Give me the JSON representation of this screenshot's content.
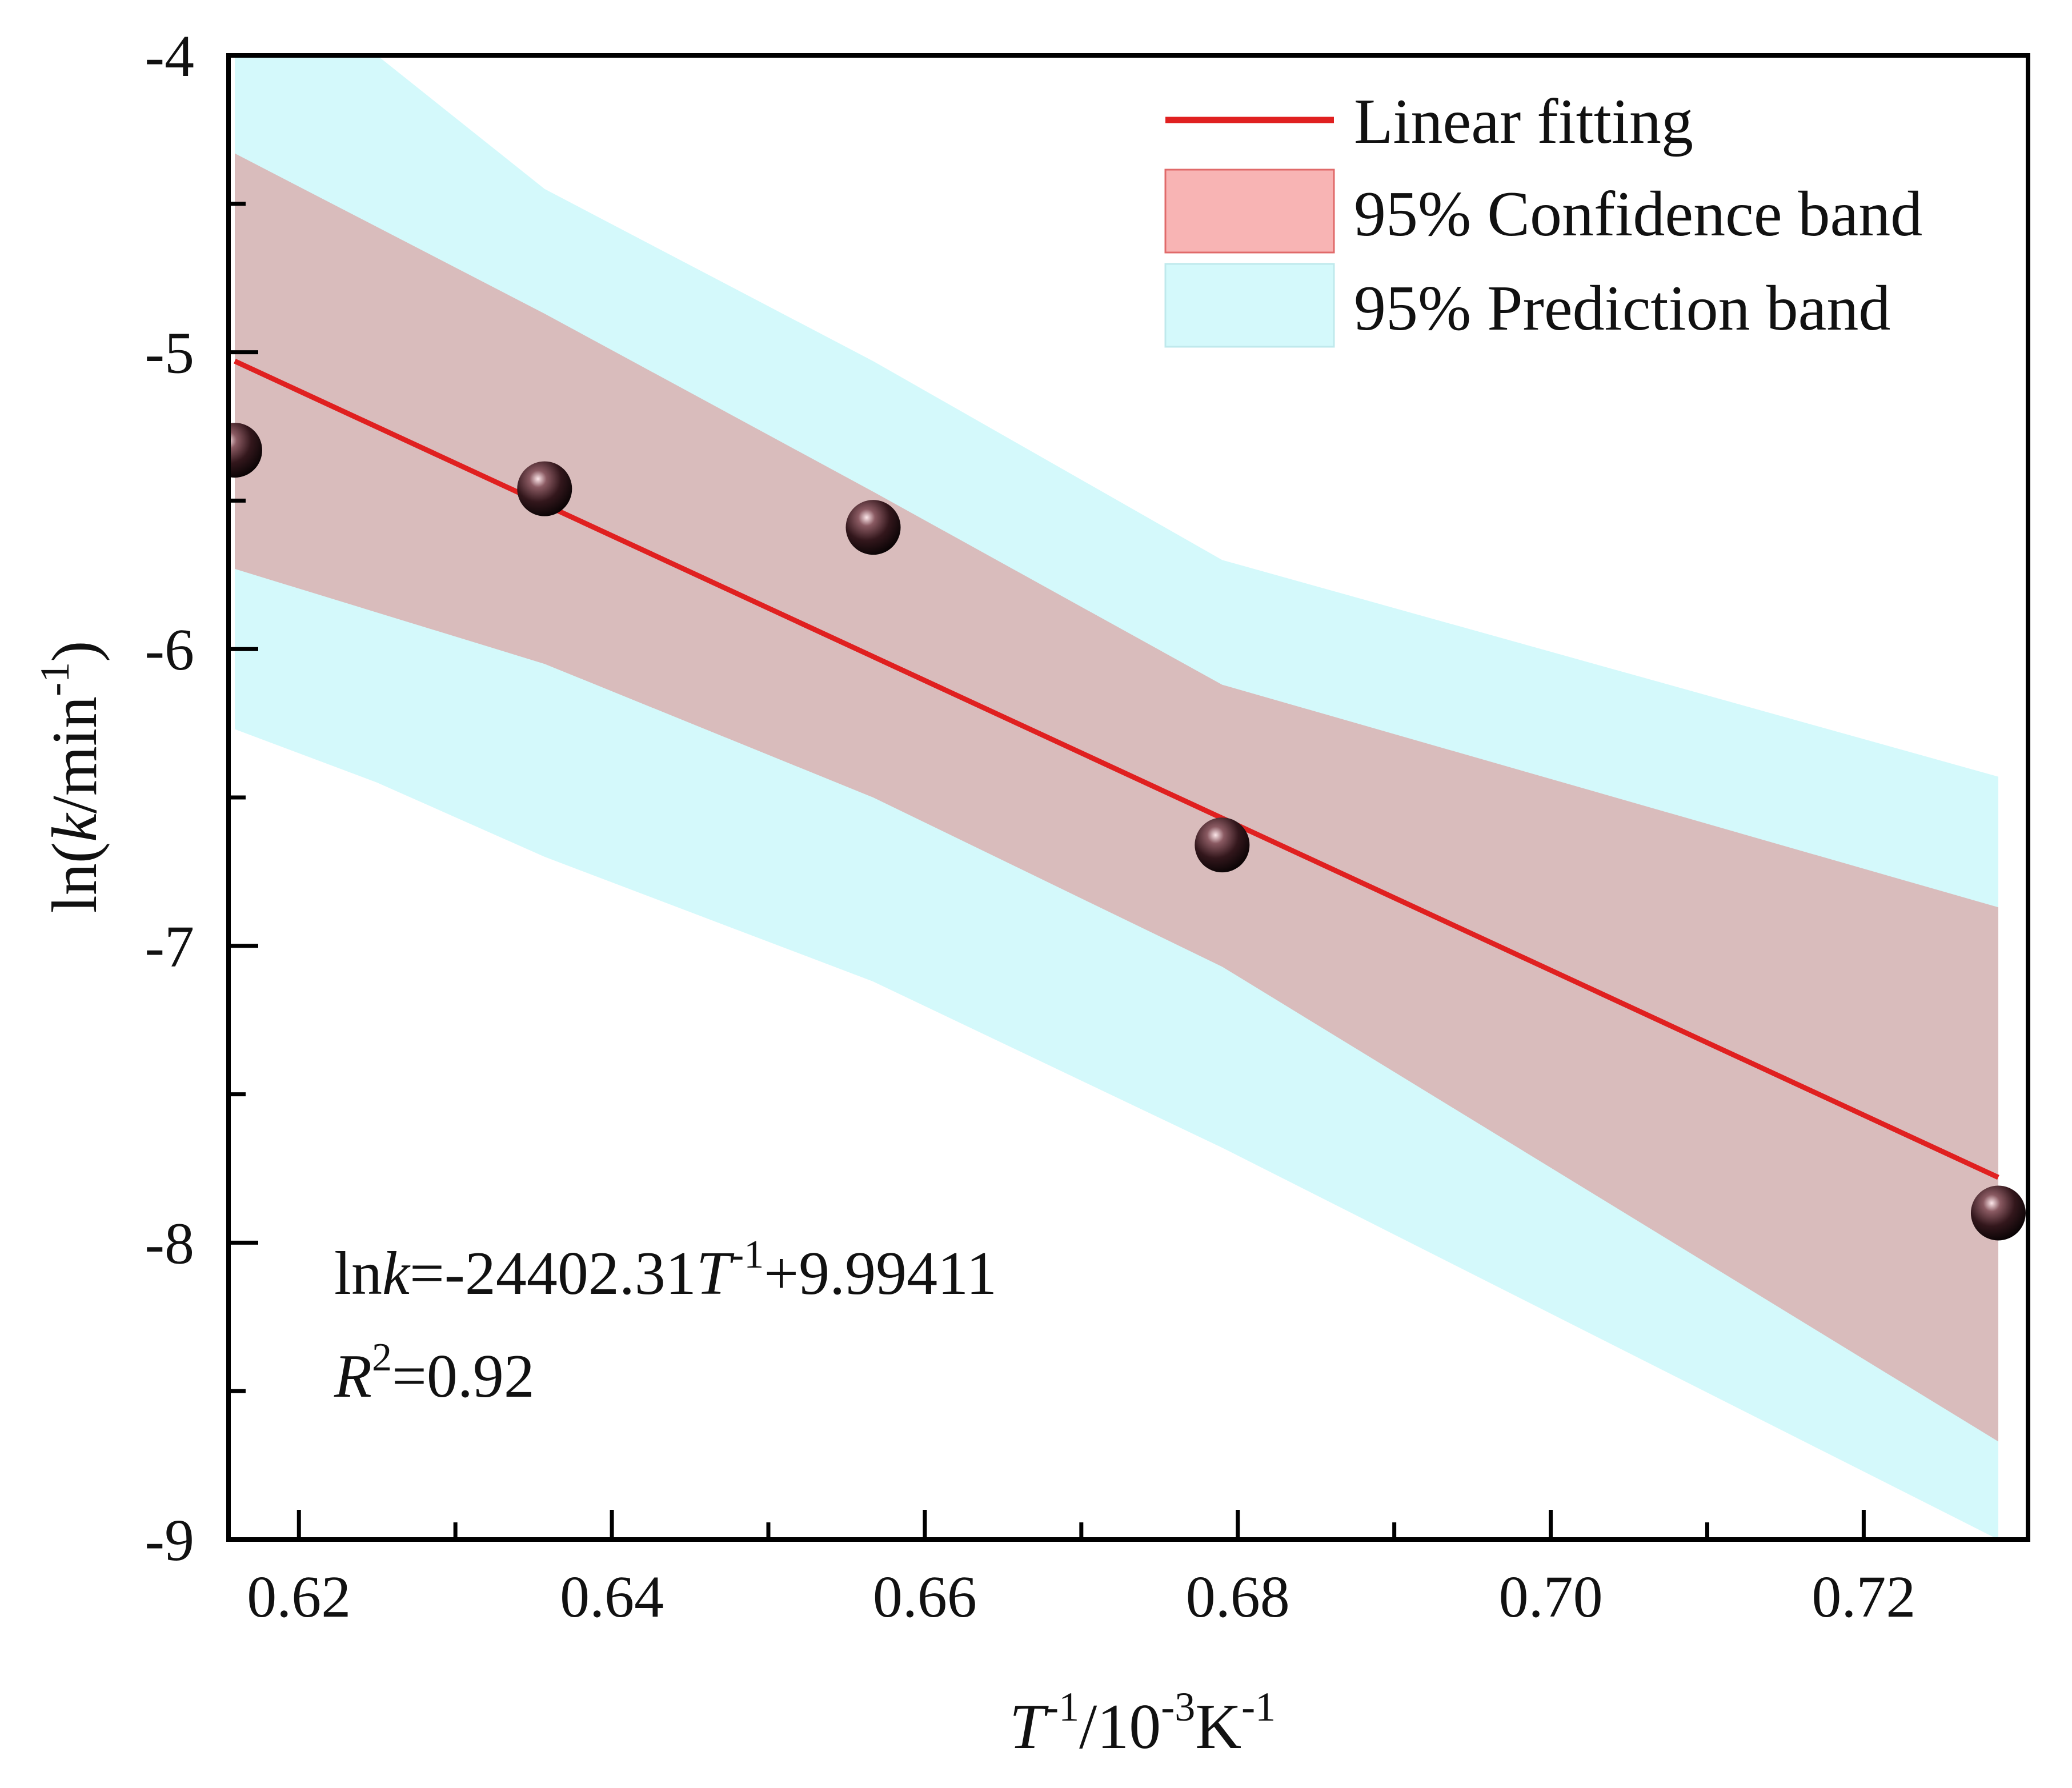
{
  "chart_data": {
    "type": "scatter",
    "xlabel": {
      "main": "T",
      "sup1": "-1",
      "mid": "/10",
      "sup2": "-3",
      "unit": "K",
      "sup3": "-1"
    },
    "ylabel": {
      "pre": "ln(",
      "italic": "k",
      "post": "/min",
      "sup": "-1",
      "close": ")"
    },
    "xlim": [
      0.6155,
      0.7305
    ],
    "ylim": [
      -9,
      -4
    ],
    "x_ticks": [
      {
        "value": 0.62,
        "label": "0.62"
      },
      {
        "value": 0.64,
        "label": "0.64"
      },
      {
        "value": 0.66,
        "label": "0.66"
      },
      {
        "value": 0.68,
        "label": "0.68"
      },
      {
        "value": 0.7,
        "label": "0.70"
      },
      {
        "value": 0.72,
        "label": "0.72"
      }
    ],
    "y_ticks": [
      {
        "value": -9,
        "label": "-9"
      },
      {
        "value": -8,
        "label": "-8"
      },
      {
        "value": -7,
        "label": "-7"
      },
      {
        "value": -6,
        "label": "-6"
      },
      {
        "value": -5,
        "label": "-5"
      },
      {
        "value": -4,
        "label": "-4"
      }
    ],
    "points": {
      "x": [
        0.6159,
        0.6357,
        0.6567,
        0.679,
        0.7286
      ],
      "y": [
        -5.33,
        -5.46,
        -5.59,
        -6.66,
        -7.9
      ]
    },
    "fit_line": {
      "x": [
        0.6159,
        0.7286
      ],
      "y": [
        -5.03,
        -7.78
      ]
    },
    "confidence_band": {
      "x": [
        0.6159,
        0.6357,
        0.6567,
        0.679,
        0.7286
      ],
      "upper": [
        -4.33,
        -4.87,
        -5.47,
        -6.12,
        -6.87
      ],
      "lower": [
        -5.73,
        -6.05,
        -6.5,
        -7.07,
        -8.67
      ]
    },
    "prediction_band": {
      "x": [
        0.6159,
        0.625,
        0.6357,
        0.6567,
        0.679,
        0.7286
      ],
      "upper": [
        -4.0,
        -4.0,
        -4.45,
        -5.03,
        -5.7,
        -6.43
      ],
      "lower": [
        -6.27,
        -6.45,
        -6.7,
        -7.12,
        -7.68,
        -9.0
      ]
    },
    "legend": {
      "position": "top-right",
      "items": [
        {
          "kind": "line",
          "label": "Linear fitting"
        },
        {
          "kind": "patch",
          "label": "95% Confidence band"
        },
        {
          "kind": "patch",
          "label": "95% Prediction band"
        }
      ]
    },
    "annotations": {
      "equation": {
        "pre": "ln",
        "italic_k": "k",
        "mid": "=-24402.31",
        "italic_T": "T",
        "sup": "-1",
        "post": "+9.99411"
      },
      "r2": {
        "italic": "R",
        "sup": "2",
        "post": "=0.92"
      }
    },
    "colors": {
      "fit_line": "#e02020",
      "confidence_band": "#d9bcbc",
      "prediction_band": "#d4f9fb",
      "legend_conf_patch": "#f8b4b4",
      "legend_pred_patch": "#d4f9fb",
      "marker": "#2a1518",
      "axis": "#000000"
    }
  }
}
